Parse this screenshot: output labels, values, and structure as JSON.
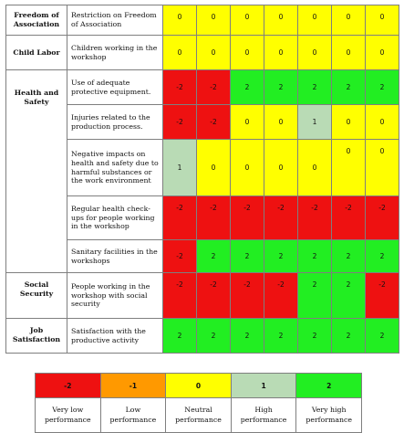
{
  "colors": {
    "-2": "#ee1111",
    "-1": "#ff9900",
    "0": "#ffff00",
    "1": "#b9dbb5",
    "2": "#22ee22"
  },
  "rows": [
    {
      "category": "Freedom of Association",
      "indicator": "Restriction on Freedom of Association",
      "scores": [
        0,
        0,
        0,
        0,
        0,
        0,
        0
      ]
    },
    {
      "category": "Child Labor",
      "indicator": "Children working in the workshop",
      "scores": [
        0,
        0,
        0,
        0,
        0,
        0,
        0
      ]
    },
    {
      "category": "Health and Safety",
      "indicator": "Use of adequate protective equipment.",
      "scores": [
        -2,
        -2,
        2,
        2,
        2,
        2,
        2
      ]
    },
    {
      "category": "",
      "indicator": "Injuries related to the production process.",
      "scores": [
        -2,
        -2,
        0,
        0,
        1,
        0,
        0
      ]
    },
    {
      "category": "",
      "indicator": "Negative impacts on health and safety due to harmful substances or the work environment",
      "scores": [
        1,
        0,
        0,
        0,
        0,
        0,
        0
      ]
    },
    {
      "category": "",
      "indicator": "Regular health check-ups for people working in the workshop",
      "scores": [
        -2,
        -2,
        -2,
        -2,
        -2,
        -2,
        -2
      ]
    },
    {
      "category": "",
      "indicator": "Sanitary facilities in the workshops",
      "scores": [
        -2,
        2,
        2,
        2,
        2,
        2,
        2
      ]
    },
    {
      "category": "Social Security",
      "indicator": "People working in the workshop with social security",
      "scores": [
        -2,
        -2,
        -2,
        -2,
        2,
        2,
        -2
      ]
    },
    {
      "category": "Job Satisfaction",
      "indicator": "Satisfaction with the productive activity",
      "scores": [
        2,
        2,
        2,
        2,
        2,
        2,
        2
      ]
    }
  ],
  "legend": [
    {
      "value": "-2",
      "label1": "Very low",
      "label2": "performance"
    },
    {
      "value": "-1",
      "label1": "Low",
      "label2": "performance"
    },
    {
      "value": "0",
      "label1": "Neutral",
      "label2": "performance"
    },
    {
      "value": "1",
      "label1": "High",
      "label2": "performance"
    },
    {
      "value": "2",
      "label1": "Very high",
      "label2": "performance"
    }
  ]
}
